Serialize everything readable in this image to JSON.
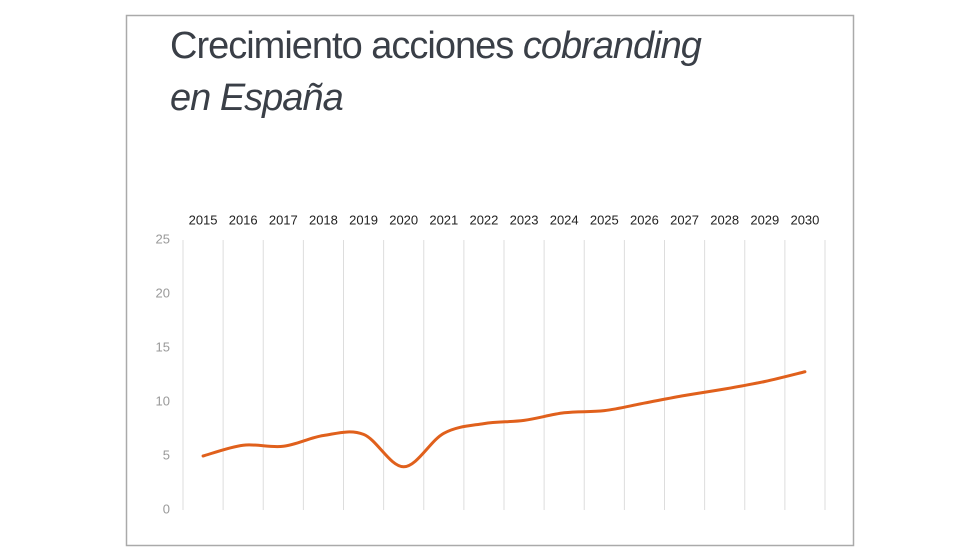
{
  "chart_data": {
    "type": "line",
    "title": [
      "Crecimiento acciones",
      "cobranding",
      "en España"
    ],
    "categories": [
      "2015",
      "2016",
      "2017",
      "2018",
      "2019",
      "2020",
      "2021",
      "2022",
      "2023",
      "2024",
      "2025",
      "2026",
      "2027",
      "2028",
      "2029",
      "2030"
    ],
    "values": [
      5.0,
      6.0,
      5.9,
      6.9,
      7.0,
      4.0,
      7.1,
      8.0,
      8.3,
      9.0,
      9.2,
      9.9,
      10.6,
      11.2,
      11.9,
      12.8
    ],
    "color": "#e0601c",
    "ylim": [
      0,
      25
    ],
    "yticks": [
      0,
      5,
      10,
      15,
      20,
      25
    ]
  }
}
